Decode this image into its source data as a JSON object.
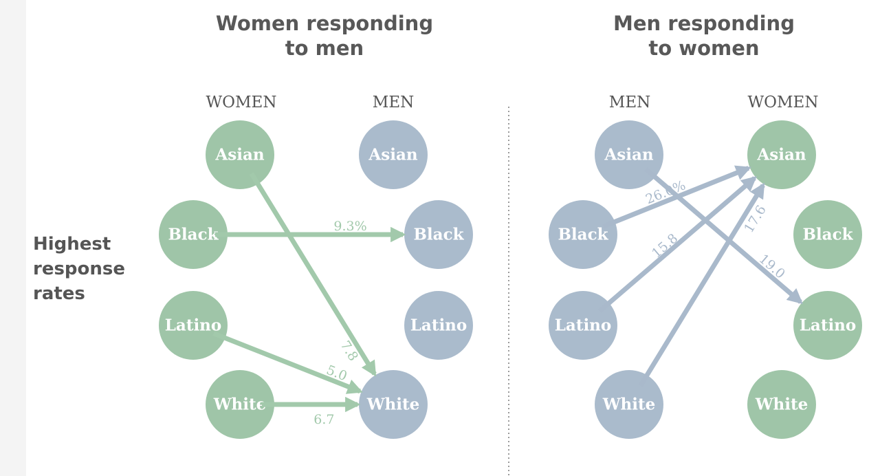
{
  "side_label": [
    "Highest",
    "response",
    "rates"
  ],
  "colors": {
    "green": "#9fc5a8",
    "blue": "#aabbcc",
    "green_arrow": "#a2c9ab",
    "blue_arrow": "#a9b9cb",
    "divider": "#9a9a9a"
  },
  "panels": [
    {
      "title": [
        "Women responding",
        "to men"
      ],
      "left_header": "WOMEN",
      "right_header": "MEN",
      "left_color": "green",
      "right_color": "blue",
      "arrow_color": "green_arrow",
      "left_nodes": [
        "Asian",
        "Black",
        "Latino",
        "White"
      ],
      "right_nodes": [
        "Asian",
        "Black",
        "Latino",
        "White"
      ],
      "arrows": [
        {
          "from": "Asian",
          "to": "White",
          "label": "7.8"
        },
        {
          "from": "Black",
          "to": "Black",
          "label": "9.3%"
        },
        {
          "from": "Latino",
          "to": "White",
          "label": "5.0"
        },
        {
          "from": "White",
          "to": "White",
          "label": "6.7"
        }
      ]
    },
    {
      "title": [
        "Men responding",
        "to women"
      ],
      "left_header": "MEN",
      "right_header": "WOMEN",
      "left_color": "blue",
      "right_color": "green",
      "arrow_color": "blue_arrow",
      "left_nodes": [
        "Asian",
        "Black",
        "Latino",
        "White"
      ],
      "right_nodes": [
        "Asian",
        "Black",
        "Latino",
        "White"
      ],
      "arrows": [
        {
          "from": "Asian",
          "to": "Latino",
          "label": "19.0"
        },
        {
          "from": "Black",
          "to": "Asian",
          "label": "26.0%"
        },
        {
          "from": "Latino",
          "to": "Asian",
          "label": "15.8"
        },
        {
          "from": "White",
          "to": "Asian",
          "label": "17.6"
        }
      ]
    }
  ]
}
